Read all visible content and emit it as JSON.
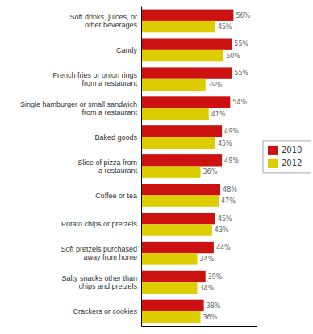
{
  "chart_data": {
    "type": "bar",
    "orientation": "horizontal",
    "categories": [
      "Soft drinks, juices, or\nother beverages",
      "Candy",
      "French fries or onion rings\nfrom a restaurant",
      "Single hamburger or small sandwich\nfrom a restaurant",
      "Baked goods",
      "Slice of pizza from\na restaurant",
      "Coffee or tea",
      "Potato chips or pretzels",
      "Soft pretzels purchased\naway from home",
      "Salty snacks other than\nchips and pretzels",
      "Crackers or cookies"
    ],
    "series": [
      {
        "name": "2010",
        "color": "#cc1111",
        "values": [
          56,
          55,
          55,
          54,
          49,
          49,
          48,
          45,
          44,
          39,
          38
        ],
        "value_labels": [
          "56%",
          "55%",
          "55%",
          "54%",
          "49%",
          "49%",
          "48%",
          "45%",
          "44%",
          "39%",
          "38%"
        ]
      },
      {
        "name": "2012",
        "color": "#ddcc00",
        "values": [
          45,
          50,
          39,
          41,
          45,
          36,
          47,
          43,
          34,
          34,
          36
        ],
        "value_labels": [
          "45%",
          "50%",
          "39%",
          "41%",
          "45%",
          "36%",
          "47%",
          "43%",
          "34%",
          "34%",
          "36%"
        ]
      }
    ],
    "xlim": [
      0,
      70
    ],
    "data_labels": true,
    "tick_labels": "y",
    "grid": false,
    "legend": "right"
  }
}
